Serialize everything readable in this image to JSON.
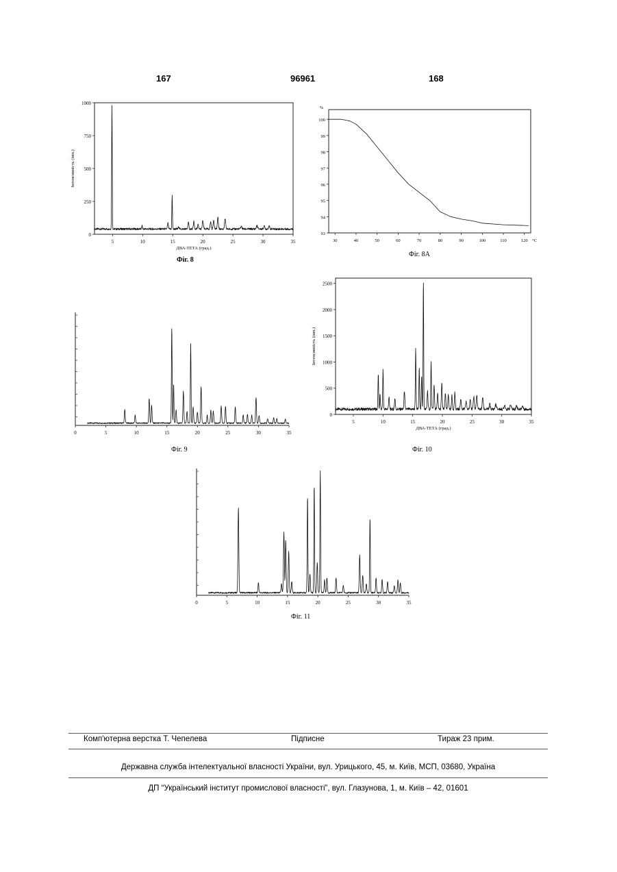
{
  "header": {
    "left_page": "167",
    "patent_number": "96961",
    "right_page": "168"
  },
  "chart_data": [
    {
      "type": "line",
      "caption": "Фіг. 8",
      "xlabel": "ДВА-ТЕТА (град.)",
      "ylabel": "Інтенсивність (імп.)",
      "xlim": [
        2,
        35
      ],
      "ylim": [
        0,
        1000
      ],
      "xticks": [
        5,
        10,
        15,
        20,
        25,
        30,
        35
      ],
      "yticks": [
        0,
        250,
        500,
        750,
        1000
      ],
      "baseline": 40,
      "grid": false,
      "peaks": [
        [
          4.9,
          950,
          0.07
        ],
        [
          9.9,
          25,
          0.08
        ],
        [
          14.2,
          45,
          0.1
        ],
        [
          14.9,
          255,
          0.07
        ],
        [
          16.0,
          20,
          0.1
        ],
        [
          17.6,
          55,
          0.1
        ],
        [
          18.5,
          60,
          0.1
        ],
        [
          19.2,
          35,
          0.1
        ],
        [
          20.0,
          65,
          0.12
        ],
        [
          21.3,
          55,
          0.12
        ],
        [
          21.8,
          70,
          0.12
        ],
        [
          22.5,
          85,
          0.12
        ],
        [
          23.7,
          80,
          0.12
        ],
        [
          26.4,
          20,
          0.15
        ],
        [
          29.0,
          25,
          0.15
        ],
        [
          30.2,
          20,
          0.15
        ],
        [
          31.0,
          20,
          0.15
        ]
      ]
    },
    {
      "type": "line",
      "caption": "Фіг. 8А",
      "yunit": "%",
      "xunit": "°C",
      "xlim": [
        27,
        123
      ],
      "ylim": [
        93,
        100.6
      ],
      "xticks": [
        30,
        40,
        50,
        60,
        70,
        80,
        90,
        100,
        110,
        120
      ],
      "yticks": [
        93,
        94,
        95,
        96,
        97,
        98,
        99,
        100
      ],
      "grid": false,
      "points": [
        [
          27,
          100.0
        ],
        [
          33,
          100.0
        ],
        [
          37,
          99.9
        ],
        [
          40,
          99.7
        ],
        [
          45,
          99.1
        ],
        [
          50,
          98.3
        ],
        [
          55,
          97.5
        ],
        [
          60,
          96.7
        ],
        [
          65,
          96.0
        ],
        [
          70,
          95.5
        ],
        [
          75,
          95.0
        ],
        [
          80,
          94.3
        ],
        [
          85,
          94.0
        ],
        [
          90,
          93.85
        ],
        [
          95,
          93.75
        ],
        [
          100,
          93.6
        ],
        [
          110,
          93.5
        ],
        [
          122,
          93.45
        ]
      ]
    },
    {
      "type": "line",
      "caption": "Фіг. 9",
      "xlim": [
        0,
        35
      ],
      "ylim": [
        0,
        100
      ],
      "xticks": [
        0,
        5,
        10,
        15,
        20,
        25,
        30,
        35
      ],
      "yticks": [],
      "baseline": 2,
      "grid": false,
      "peaks": [
        [
          8.1,
          12,
          0.1
        ],
        [
          9.8,
          7,
          0.1
        ],
        [
          12.1,
          22,
          0.1
        ],
        [
          12.5,
          16,
          0.1
        ],
        [
          15.8,
          86,
          0.08
        ],
        [
          16.1,
          35,
          0.08
        ],
        [
          16.5,
          12,
          0.1
        ],
        [
          17.7,
          28,
          0.1
        ],
        [
          18.3,
          10,
          0.1
        ],
        [
          18.9,
          70,
          0.08
        ],
        [
          19.3,
          14,
          0.1
        ],
        [
          20.0,
          10,
          0.1
        ],
        [
          20.6,
          32,
          0.1
        ],
        [
          21.6,
          7,
          0.1
        ],
        [
          22.2,
          11,
          0.1
        ],
        [
          22.6,
          11,
          0.1
        ],
        [
          23.9,
          15,
          0.1
        ],
        [
          24.6,
          15,
          0.1
        ],
        [
          26.2,
          14,
          0.1
        ],
        [
          27.5,
          7,
          0.1
        ],
        [
          28.2,
          8,
          0.1
        ],
        [
          28.9,
          7,
          0.1
        ],
        [
          29.6,
          23,
          0.1
        ],
        [
          30.1,
          7,
          0.1
        ],
        [
          31.5,
          4,
          0.1
        ],
        [
          32.5,
          5,
          0.1
        ],
        [
          33.0,
          4,
          0.1
        ],
        [
          34.4,
          4,
          0.1
        ]
      ]
    },
    {
      "type": "line",
      "caption": "Фіг. 10",
      "xlabel": "ДВА-ТЕТА (град.)",
      "ylabel": "Інтенсивність (імп.)",
      "xlim": [
        2,
        35
      ],
      "ylim": [
        0,
        2600
      ],
      "xticks": [
        5,
        10,
        15,
        20,
        25,
        30,
        35
      ],
      "yticks": [
        0,
        500,
        1000,
        1500,
        2000,
        2500
      ],
      "baseline": 100,
      "grid": false,
      "peaks": [
        [
          9.2,
          680,
          0.08
        ],
        [
          9.5,
          280,
          0.08
        ],
        [
          10.0,
          750,
          0.08
        ],
        [
          11.0,
          230,
          0.1
        ],
        [
          12.0,
          210,
          0.1
        ],
        [
          13.6,
          360,
          0.1
        ],
        [
          15.5,
          1150,
          0.08
        ],
        [
          16.1,
          800,
          0.08
        ],
        [
          16.5,
          650,
          0.08
        ],
        [
          16.8,
          2500,
          0.07
        ],
        [
          17.5,
          350,
          0.1
        ],
        [
          18.1,
          900,
          0.08
        ],
        [
          18.6,
          450,
          0.1
        ],
        [
          19.2,
          300,
          0.1
        ],
        [
          19.9,
          500,
          0.1
        ],
        [
          20.5,
          320,
          0.1
        ],
        [
          21.0,
          300,
          0.1
        ],
        [
          21.6,
          260,
          0.1
        ],
        [
          22.1,
          320,
          0.1
        ],
        [
          23.1,
          190,
          0.12
        ],
        [
          24.0,
          150,
          0.12
        ],
        [
          24.7,
          210,
          0.12
        ],
        [
          25.3,
          240,
          0.12
        ],
        [
          25.8,
          260,
          0.12
        ],
        [
          26.8,
          230,
          0.12
        ],
        [
          28.0,
          100,
          0.12
        ],
        [
          29.0,
          90,
          0.15
        ],
        [
          30.5,
          80,
          0.15
        ],
        [
          31.5,
          80,
          0.15
        ],
        [
          32.5,
          70,
          0.15
        ],
        [
          33.5,
          60,
          0.15
        ]
      ]
    },
    {
      "type": "line",
      "caption": "Фіг. 11",
      "xlim": [
        0,
        35
      ],
      "ylim": [
        0,
        100
      ],
      "xticks": [
        0,
        5,
        10,
        15,
        20,
        25,
        30,
        35
      ],
      "yticks": [],
      "baseline": 2,
      "grid": false,
      "peaks": [
        [
          6.9,
          68,
          0.1
        ],
        [
          10.2,
          8,
          0.1
        ],
        [
          14.0,
          7,
          0.1
        ],
        [
          14.4,
          48,
          0.1
        ],
        [
          14.7,
          42,
          0.1
        ],
        [
          15.2,
          33,
          0.1
        ],
        [
          15.7,
          9,
          0.1
        ],
        [
          18.3,
          77,
          0.08
        ],
        [
          18.7,
          15,
          0.1
        ],
        [
          19.4,
          86,
          0.08
        ],
        [
          19.9,
          24,
          0.1
        ],
        [
          20.4,
          97,
          0.08
        ],
        [
          21.1,
          10,
          0.1
        ],
        [
          21.5,
          12,
          0.1
        ],
        [
          23.0,
          12,
          0.1
        ],
        [
          24.2,
          6,
          0.1
        ],
        [
          26.9,
          30,
          0.1
        ],
        [
          27.4,
          14,
          0.1
        ],
        [
          28.0,
          7,
          0.1
        ],
        [
          28.6,
          60,
          0.08
        ],
        [
          29.6,
          12,
          0.1
        ],
        [
          30.6,
          11,
          0.1
        ],
        [
          31.5,
          9,
          0.1
        ],
        [
          32.6,
          6,
          0.1
        ],
        [
          33.2,
          10,
          0.1
        ],
        [
          33.6,
          8,
          0.1
        ]
      ]
    }
  ],
  "footer": {
    "layout": "Комп'ютерна верстка Т. Чепелева",
    "signed": "Підписне",
    "circulation": "Тираж 23 прим.",
    "agency": "Державна служба інтелектуальної власності України, вул. Урицького, 45, м. Київ, МСП, 03680, Україна",
    "institute": "ДП “Український інститут промислової власності”, вул. Глазунова, 1, м. Київ – 42, 01601"
  }
}
